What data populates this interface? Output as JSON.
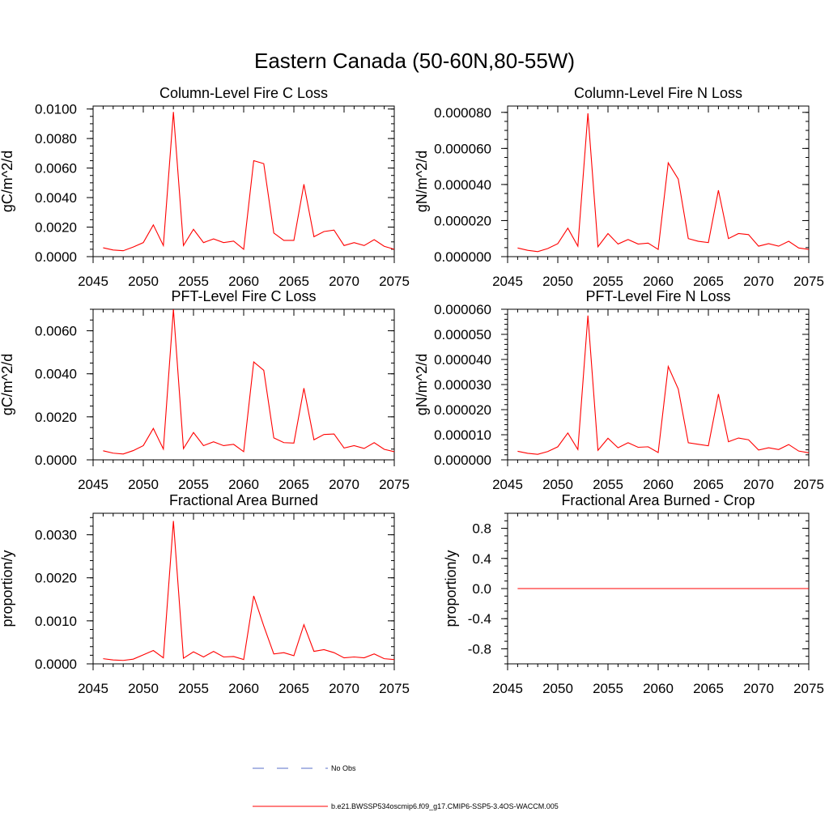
{
  "figure_title": "Eastern Canada (50-60N,80-55W)",
  "legend": {
    "items": [
      {
        "label": "No Obs",
        "color": "#5a6fc8",
        "style": "dashed"
      },
      {
        "label": "b.e21.BWSSP534oscmip6.f09_g17.CMIP6-SSP5-3.4OS-WACCM.005",
        "color": "#ff0000",
        "style": "solid"
      }
    ]
  },
  "colors": {
    "series": "#ff0000",
    "axis": "#000000"
  },
  "chart_data": [
    {
      "type": "line",
      "title": "Column-Level Fire C Loss",
      "xlabel": "",
      "ylabel": "gC/m^2/d",
      "xlim": [
        2045,
        2075
      ],
      "ylim": [
        0,
        0.0102
      ],
      "xticks": [
        "2045",
        "2050",
        "2055",
        "2060",
        "2065",
        "2070",
        "2075"
      ],
      "yticks": [
        {
          "v": 0,
          "label": "0.0000"
        },
        {
          "v": 0.002,
          "label": "0.0020"
        },
        {
          "v": 0.004,
          "label": "0.0040"
        },
        {
          "v": 0.006,
          "label": "0.0060"
        },
        {
          "v": 0.008,
          "label": "0.0080"
        },
        {
          "v": 0.01,
          "label": "0.0100"
        }
      ],
      "yminor": 0.0005,
      "x": [
        2046,
        2047,
        2048,
        2049,
        2050,
        2051,
        2052,
        2053,
        2054,
        2055,
        2056,
        2057,
        2058,
        2059,
        2060,
        2061,
        2062,
        2063,
        2064,
        2065,
        2066,
        2067,
        2068,
        2069,
        2070,
        2071,
        2072,
        2073,
        2074,
        2075
      ],
      "series": [
        {
          "name": "b.e21.BWSSP534oscmip6.f09_g17.CMIP6-SSP5-3.4OS-WACCM.005",
          "values": [
            0.0006,
            0.00045,
            0.0004,
            0.00065,
            0.00095,
            0.00215,
            0.00075,
            0.0098,
            0.00075,
            0.00185,
            0.00095,
            0.0012,
            0.00095,
            0.00105,
            0.0005,
            0.0065,
            0.0063,
            0.0016,
            0.0011,
            0.0011,
            0.0049,
            0.00135,
            0.0017,
            0.0018,
            0.00075,
            0.00095,
            0.00075,
            0.00115,
            0.0007,
            0.0005
          ]
        }
      ]
    },
    {
      "type": "line",
      "title": "Column-Level Fire N Loss",
      "xlabel": "",
      "ylabel": "gN/m^2/d",
      "xlim": [
        2045,
        2075
      ],
      "ylim": [
        0,
        8.35e-05
      ],
      "xticks": [
        "2045",
        "2050",
        "2055",
        "2060",
        "2065",
        "2070",
        "2075"
      ],
      "yticks": [
        {
          "v": 0,
          "label": "0.000000"
        },
        {
          "v": 2e-05,
          "label": "0.000020"
        },
        {
          "v": 4e-05,
          "label": "0.000040"
        },
        {
          "v": 6e-05,
          "label": "0.000060"
        },
        {
          "v": 8e-05,
          "label": "0.000080"
        }
      ],
      "yminor": 5e-06,
      "x": [
        2046,
        2047,
        2048,
        2049,
        2050,
        2051,
        2052,
        2053,
        2054,
        2055,
        2056,
        2057,
        2058,
        2059,
        2060,
        2061,
        2062,
        2063,
        2064,
        2065,
        2066,
        2067,
        2068,
        2069,
        2070,
        2071,
        2072,
        2073,
        2074,
        2075
      ],
      "series": [
        {
          "name": "b.e21.BWSSP534oscmip6.f09_g17.CMIP6-SSP5-3.4OS-WACCM.005",
          "values": [
            4.8e-06,
            3.5e-06,
            2.8e-06,
            4.5e-06,
            7.2e-06,
            1.58e-05,
            5.8e-06,
            7.95e-05,
            5.5e-06,
            1.28e-05,
            7e-06,
            9.5e-06,
            7e-06,
            7.5e-06,
            4e-06,
            5.2e-05,
            4.3e-05,
            1e-05,
            8.5e-06,
            7.8e-06,
            3.68e-05,
            1e-05,
            1.28e-05,
            1.22e-05,
            5.8e-06,
            7.2e-06,
            5.8e-06,
            8.5e-06,
            4.8e-06,
            4e-06
          ]
        }
      ]
    },
    {
      "type": "line",
      "title": "PFT-Level Fire C Loss",
      "xlabel": "",
      "ylabel": "gC/m^2/d",
      "xlim": [
        2045,
        2075
      ],
      "ylim": [
        0,
        0.007
      ],
      "xticks": [
        "2045",
        "2050",
        "2055",
        "2060",
        "2065",
        "2070",
        "2075"
      ],
      "yticks": [
        {
          "v": 0,
          "label": "0.0000"
        },
        {
          "v": 0.002,
          "label": "0.0020"
        },
        {
          "v": 0.004,
          "label": "0.0040"
        },
        {
          "v": 0.006,
          "label": "0.0060"
        }
      ],
      "yminor": 0.0005,
      "x": [
        2046,
        2047,
        2048,
        2049,
        2050,
        2051,
        2052,
        2053,
        2054,
        2055,
        2056,
        2057,
        2058,
        2059,
        2060,
        2061,
        2062,
        2063,
        2064,
        2065,
        2066,
        2067,
        2068,
        2069,
        2070,
        2071,
        2072,
        2073,
        2074,
        2075
      ],
      "series": [
        {
          "name": "b.e21.BWSSP534oscmip6.f09_g17.CMIP6-SSP5-3.4OS-WACCM.005",
          "values": [
            0.00042,
            0.00031,
            0.00027,
            0.00043,
            0.00066,
            0.00146,
            0.0005,
            0.007,
            0.00052,
            0.00127,
            0.00066,
            0.00084,
            0.00066,
            0.00072,
            0.00038,
            0.00455,
            0.00416,
            0.00102,
            0.0008,
            0.00078,
            0.00333,
            0.00093,
            0.00118,
            0.0012,
            0.00055,
            0.00066,
            0.00053,
            0.0008,
            0.00049,
            0.00038
          ]
        }
      ]
    },
    {
      "type": "line",
      "title": "PFT-Level Fire N Loss",
      "xlabel": "",
      "ylabel": "gN/m^2/d",
      "xlim": [
        2045,
        2075
      ],
      "ylim": [
        0,
        6e-05
      ],
      "xticks": [
        "2045",
        "2050",
        "2055",
        "2060",
        "2065",
        "2070",
        "2075"
      ],
      "yticks": [
        {
          "v": 0,
          "label": "0.000000"
        },
        {
          "v": 1e-05,
          "label": "0.000010"
        },
        {
          "v": 2e-05,
          "label": "0.000020"
        },
        {
          "v": 3e-05,
          "label": "0.000030"
        },
        {
          "v": 4e-05,
          "label": "0.000040"
        },
        {
          "v": 5e-05,
          "label": "0.000050"
        },
        {
          "v": 6e-05,
          "label": "0.000060"
        }
      ],
      "yminor": 2e-06,
      "x": [
        2046,
        2047,
        2048,
        2049,
        2050,
        2051,
        2052,
        2053,
        2054,
        2055,
        2056,
        2057,
        2058,
        2059,
        2060,
        2061,
        2062,
        2063,
        2064,
        2065,
        2066,
        2067,
        2068,
        2069,
        2070,
        2071,
        2072,
        2073,
        2074,
        2075
      ],
      "series": [
        {
          "name": "b.e21.BWSSP534oscmip6.f09_g17.CMIP6-SSP5-3.4OS-WACCM.005",
          "values": [
            3.4e-06,
            2.6e-06,
            2.2e-06,
            3.3e-06,
            5.2e-06,
            1.07e-05,
            4.1e-06,
            5.75e-05,
            3.8e-06,
            8.6e-06,
            4.8e-06,
            6.8e-06,
            5e-06,
            5.2e-06,
            2.9e-06,
            3.72e-05,
            2.82e-05,
            6.8e-06,
            6.2e-06,
            5.6e-06,
            2.62e-05,
            7.2e-06,
            8.7e-06,
            8e-06,
            3.9e-06,
            4.8e-06,
            4.1e-06,
            6.1e-06,
            3.5e-06,
            2.8e-06
          ]
        }
      ]
    },
    {
      "type": "line",
      "title": "Fractional Area Burned",
      "xlabel": "",
      "ylabel": "proportion/y",
      "xlim": [
        2045,
        2075
      ],
      "ylim": [
        0,
        0.0035
      ],
      "xticks": [
        "2045",
        "2050",
        "2055",
        "2060",
        "2065",
        "2070",
        "2075"
      ],
      "yticks": [
        {
          "v": 0,
          "label": "0.0000"
        },
        {
          "v": 0.001,
          "label": "0.0010"
        },
        {
          "v": 0.002,
          "label": "0.0020"
        },
        {
          "v": 0.003,
          "label": "0.0030"
        }
      ],
      "yminor": 0.0002,
      "x": [
        2046,
        2047,
        2048,
        2049,
        2050,
        2051,
        2052,
        2053,
        2054,
        2055,
        2056,
        2057,
        2058,
        2059,
        2060,
        2061,
        2062,
        2063,
        2064,
        2065,
        2066,
        2067,
        2068,
        2069,
        2070,
        2071,
        2072,
        2073,
        2074,
        2075
      ],
      "series": [
        {
          "name": "b.e21.BWSSP534oscmip6.f09_g17.CMIP6-SSP5-3.4OS-WACCM.005",
          "values": [
            0.00012,
            9e-05,
            8e-05,
            0.00011,
            0.00021,
            0.00031,
            0.00014,
            0.00332,
            0.00013,
            0.00028,
            0.00016,
            0.00029,
            0.00016,
            0.00017,
            0.0001,
            0.00158,
            0.00088,
            0.00023,
            0.00026,
            0.00019,
            0.00091,
            0.00029,
            0.00033,
            0.00026,
            0.00014,
            0.00016,
            0.00014,
            0.00023,
            0.00012,
            0.0001
          ]
        }
      ]
    },
    {
      "type": "line",
      "title": "Fractional Area Burned - Crop",
      "xlabel": "",
      "ylabel": "proportion/y",
      "xlim": [
        2045,
        2075
      ],
      "ylim": [
        -1.0,
        1.0
      ],
      "xticks": [
        "2045",
        "2050",
        "2055",
        "2060",
        "2065",
        "2070",
        "2075"
      ],
      "yticks": [
        {
          "v": -0.8,
          "label": "-0.8"
        },
        {
          "v": -0.4,
          "label": "-0.4"
        },
        {
          "v": 0,
          "label": "0.0"
        },
        {
          "v": 0.4,
          "label": "0.4"
        },
        {
          "v": 0.8,
          "label": "0.8"
        }
      ],
      "yminor": 0.1,
      "x": [
        2046,
        2047,
        2048,
        2049,
        2050,
        2051,
        2052,
        2053,
        2054,
        2055,
        2056,
        2057,
        2058,
        2059,
        2060,
        2061,
        2062,
        2063,
        2064,
        2065,
        2066,
        2067,
        2068,
        2069,
        2070,
        2071,
        2072,
        2073,
        2074,
        2075
      ],
      "series": [
        {
          "name": "b.e21.BWSSP534oscmip6.f09_g17.CMIP6-SSP5-3.4OS-WACCM.005",
          "values": [
            0,
            0,
            0,
            0,
            0,
            0,
            0,
            0,
            0,
            0,
            0,
            0,
            0,
            0,
            0,
            0,
            0,
            0,
            0,
            0,
            0,
            0,
            0,
            0,
            0,
            0,
            0,
            0,
            0,
            0
          ]
        }
      ]
    }
  ]
}
